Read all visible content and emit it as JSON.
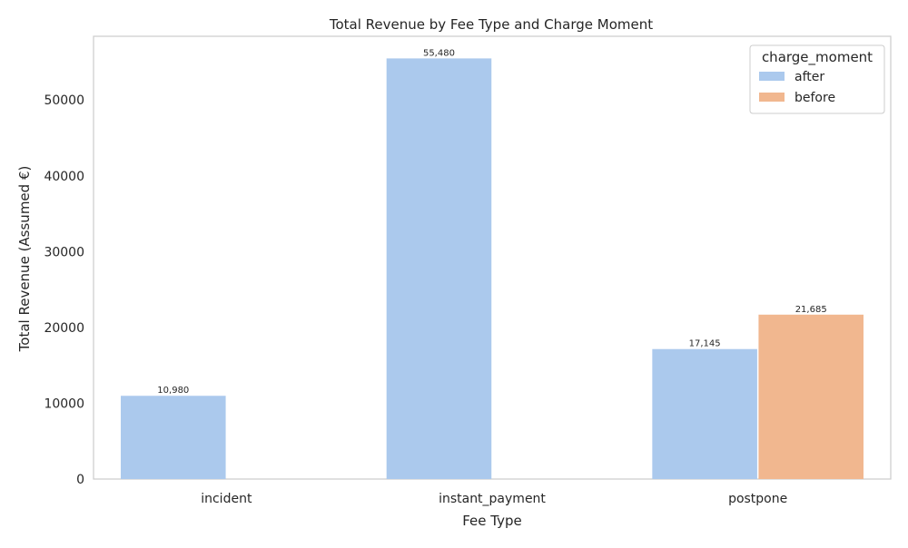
{
  "chart_data": {
    "type": "bar",
    "title": "Total Revenue by Fee Type and Charge Moment",
    "xlabel": "Fee Type",
    "ylabel": "Total Revenue (Assumed €)",
    "categories": [
      "incident",
      "instant_payment",
      "postpone"
    ],
    "ylim": [
      0,
      58400
    ],
    "yticks": [
      0,
      10000,
      20000,
      30000,
      40000,
      50000
    ],
    "grid": false,
    "legend": {
      "title": "charge_moment",
      "placement": "top-right"
    },
    "series": [
      {
        "name": "after",
        "color": "#abc9ed",
        "values": [
          10980,
          55480,
          17145
        ],
        "labels": [
          "10,980",
          "55,480",
          "17,145"
        ]
      },
      {
        "name": "before",
        "color": "#f1b78f",
        "values": [
          null,
          null,
          21685
        ],
        "labels": [
          "",
          "",
          "21,685"
        ]
      }
    ]
  }
}
